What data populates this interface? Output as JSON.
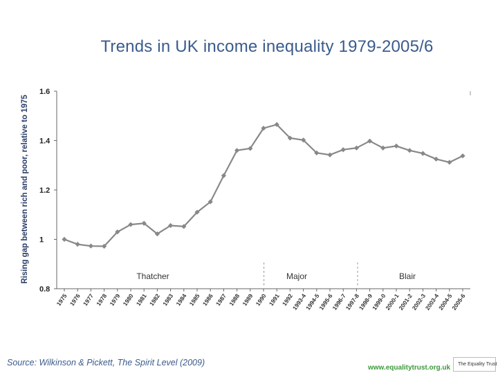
{
  "chart_data": {
    "type": "line",
    "title": "Trends in UK income inequality 1979-2005/6",
    "ylabel": "Rising gap between rich and poor, relative to 1975",
    "xlabel": "",
    "ylim": [
      0.8,
      1.6
    ],
    "y_ticks": [
      "0.8",
      "1",
      "1.2",
      "1.4",
      "1.6"
    ],
    "y_tick_values": [
      0.8,
      1.0,
      1.2,
      1.4,
      1.6
    ],
    "categories": [
      "1975",
      "1976",
      "1977",
      "1978",
      "1979",
      "1980",
      "1981",
      "1982",
      "1983",
      "1984",
      "1985",
      "1986",
      "1987",
      "1988",
      "1989",
      "1990",
      "1991",
      "1992",
      "1993-4",
      "1994-5",
      "1995-6",
      "1996-7",
      "1997-8",
      "1998-9",
      "1999-0",
      "2000-1",
      "2001-2",
      "2002-3",
      "2003-4",
      "2004-5",
      "2005-6"
    ],
    "series": [
      {
        "values": [
          1.0,
          0.98,
          0.973,
          0.972,
          1.03,
          1.06,
          1.065,
          1.022,
          1.056,
          1.052,
          1.11,
          1.152,
          1.258,
          1.36,
          1.368,
          1.45,
          1.465,
          1.41,
          1.402,
          1.35,
          1.342,
          1.363,
          1.37,
          1.398,
          1.37,
          1.378,
          1.36,
          1.348,
          1.325,
          1.312,
          1.338
        ],
        "color": "#888888"
      }
    ],
    "periods": [
      {
        "label": "Thatcher"
      },
      {
        "label": "Major"
      },
      {
        "label": "Blair"
      }
    ],
    "grid": false,
    "legend": "none"
  },
  "source": "Source: Wilkinson & Pickett, The Spirit Level (2009)",
  "website": "www.equalitytrust.org.uk",
  "logo_text": "The Equality Trust"
}
